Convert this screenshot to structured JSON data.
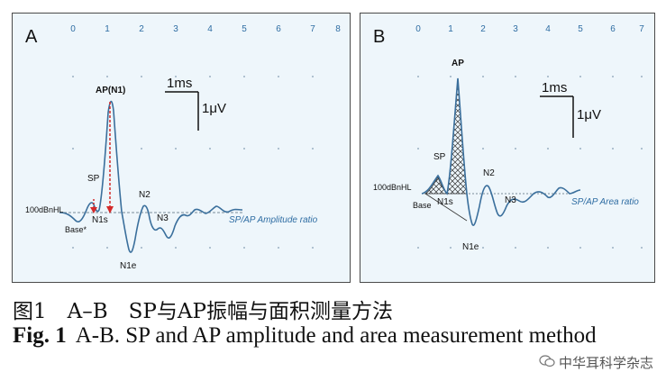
{
  "panel_a": {
    "letter": "A",
    "ticks": [
      "0",
      "1",
      "2",
      "3",
      "4",
      "5",
      "6",
      "7",
      "8"
    ],
    "stimulus": "100dBnHL",
    "peak_ap": "AP(N1)",
    "peak_sp": "SP",
    "label_base": "Base*",
    "label_n1s": "N1s",
    "label_n1e": "N1e",
    "label_n2": "N2",
    "label_n3": "N3",
    "ratio_label": "SP/AP Amplitude ratio",
    "scale_time": "1ms",
    "scale_amp": "1μV"
  },
  "panel_b": {
    "letter": "B",
    "ticks": [
      "0",
      "1",
      "2",
      "3",
      "4",
      "5",
      "6",
      "7"
    ],
    "stimulus": "100dBnHL",
    "peak_ap": "AP",
    "peak_sp": "SP",
    "label_base": "Base",
    "label_n1s": "N1s",
    "label_n1e": "N1e",
    "label_n2": "N2",
    "label_n3": "N3",
    "ratio_label": "SP/AP Area ratio",
    "scale_time": "1ms",
    "scale_amp": "1μV"
  },
  "caption_cn": "图1　A–B　SP与AP振幅与面积测量方法",
  "caption_en_fig": "Fig. 1",
  "caption_en_text": "A-B. SP and AP amplitude and area measurement method",
  "watermark": "中华耳科学杂志",
  "colors": {
    "trace": "#3a6f9c",
    "arrow": "#d42a2a",
    "panel_bg": "#eef6fb",
    "ratio_text": "#2f6da3"
  }
}
